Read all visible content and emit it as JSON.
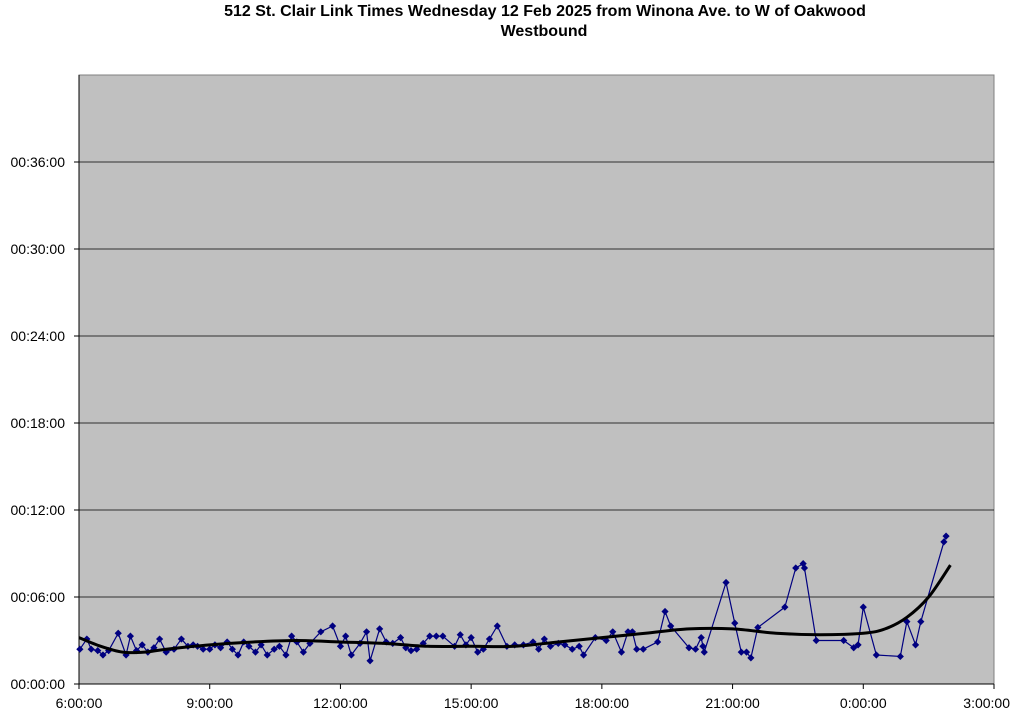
{
  "chart_data": {
    "type": "scatter",
    "title": "512 St. Clair Link Times Wednesday 12 Feb 2025 from Winona Ave. to W of Oakwood",
    "subtitle": "Westbound",
    "xlabel": "",
    "ylabel": "",
    "x_ticks": [
      "6:00:00",
      "9:00:00",
      "12:00:00",
      "15:00:00",
      "18:00:00",
      "21:00:00",
      "0:00:00",
      "3:00:00"
    ],
    "y_ticks": [
      "00:00:00",
      "00:06:00",
      "00:12:00",
      "00:18:00",
      "00:24:00",
      "00:30:00",
      "00:36:00"
    ],
    "xlim_hours": [
      6,
      27
    ],
    "ylim_minutes": [
      0,
      42
    ],
    "grid": "horizontal",
    "legend": "none",
    "colors": {
      "plot_background": "#c0c0c0",
      "series": "#000080",
      "trend": "#000000",
      "grid": "#000000"
    },
    "series": [
      {
        "style": "line-with-diamond-markers",
        "x_hours": [
          6.02,
          6.18,
          6.28,
          6.43,
          6.55,
          6.68,
          6.9,
          7.08,
          7.18,
          7.32,
          7.45,
          7.58,
          7.72,
          7.85,
          8.0,
          8.18,
          8.35,
          8.5,
          8.62,
          8.72,
          8.85,
          9.0,
          9.12,
          9.25,
          9.4,
          9.52,
          9.65,
          9.78,
          9.9,
          10.05,
          10.18,
          10.32,
          10.48,
          10.6,
          10.75,
          10.88,
          11.0,
          11.15,
          11.3,
          11.55,
          11.82,
          12.0,
          12.12,
          12.25,
          12.45,
          12.6,
          12.68,
          12.9,
          13.05,
          13.2,
          13.38,
          13.5,
          13.62,
          13.75,
          13.9,
          14.05,
          14.2,
          14.35,
          14.62,
          14.75,
          14.88,
          15.0,
          15.15,
          15.28,
          15.42,
          15.6,
          15.82,
          16.0,
          16.2,
          16.42,
          16.55,
          16.68,
          16.82,
          17.0,
          17.15,
          17.32,
          17.48,
          17.58,
          17.85,
          18.1,
          18.25,
          18.45,
          18.6,
          18.7,
          18.8,
          18.95,
          19.28,
          19.45,
          19.58,
          20.0,
          20.15,
          20.28,
          20.32,
          20.35,
          20.85,
          21.05,
          21.2,
          21.32,
          21.42,
          21.58,
          22.2,
          22.45,
          22.62,
          22.65,
          22.92,
          23.55,
          23.78,
          23.88,
          24.0,
          24.3,
          24.85,
          25.0,
          25.2,
          25.32,
          25.85,
          25.9
        ],
        "y_minutes": [
          2.4,
          3.1,
          2.4,
          2.3,
          2.0,
          2.3,
          3.5,
          2.0,
          3.3,
          2.3,
          2.7,
          2.2,
          2.5,
          3.1,
          2.2,
          2.4,
          3.1,
          2.6,
          2.7,
          2.6,
          2.4,
          2.4,
          2.7,
          2.5,
          2.9,
          2.4,
          2.0,
          2.9,
          2.6,
          2.2,
          2.7,
          2.0,
          2.4,
          2.6,
          2.0,
          3.3,
          2.9,
          2.2,
          2.8,
          3.6,
          4.0,
          2.6,
          3.3,
          2.0,
          2.8,
          3.6,
          1.6,
          3.8,
          2.9,
          2.8,
          3.2,
          2.5,
          2.3,
          2.4,
          2.8,
          3.3,
          3.3,
          3.3,
          2.6,
          3.4,
          2.7,
          3.2,
          2.2,
          2.4,
          3.1,
          4.0,
          2.6,
          2.7,
          2.7,
          2.9,
          2.4,
          3.1,
          2.6,
          2.8,
          2.7,
          2.4,
          2.6,
          2.0,
          3.2,
          3.0,
          3.6,
          2.2,
          3.6,
          3.6,
          2.4,
          2.4,
          2.9,
          5.0,
          4.0,
          2.5,
          2.4,
          3.2,
          2.6,
          2.2,
          7.0,
          4.2,
          2.2,
          2.2,
          1.8,
          3.9,
          5.3,
          8.0,
          8.3,
          8.0,
          3.0,
          3.0,
          2.5,
          2.7,
          5.3,
          2.0,
          1.9,
          4.3,
          2.7,
          4.3,
          9.8,
          10.2
        ]
      },
      {
        "style": "trend-line",
        "x_hours": [
          6.0,
          6.5,
          7.0,
          7.5,
          8.0,
          9.0,
          10.0,
          11.0,
          12.0,
          13.0,
          14.0,
          15.0,
          16.0,
          17.0,
          18.0,
          19.0,
          20.0,
          21.0,
          22.0,
          23.0,
          24.0,
          24.5,
          25.0,
          25.5,
          26.0
        ],
        "y_minutes": [
          3.2,
          2.6,
          2.2,
          2.2,
          2.4,
          2.7,
          2.9,
          3.0,
          2.9,
          2.8,
          2.6,
          2.6,
          2.6,
          2.9,
          3.2,
          3.5,
          3.8,
          3.8,
          3.5,
          3.4,
          3.5,
          3.8,
          4.6,
          6.0,
          8.2
        ]
      }
    ]
  }
}
